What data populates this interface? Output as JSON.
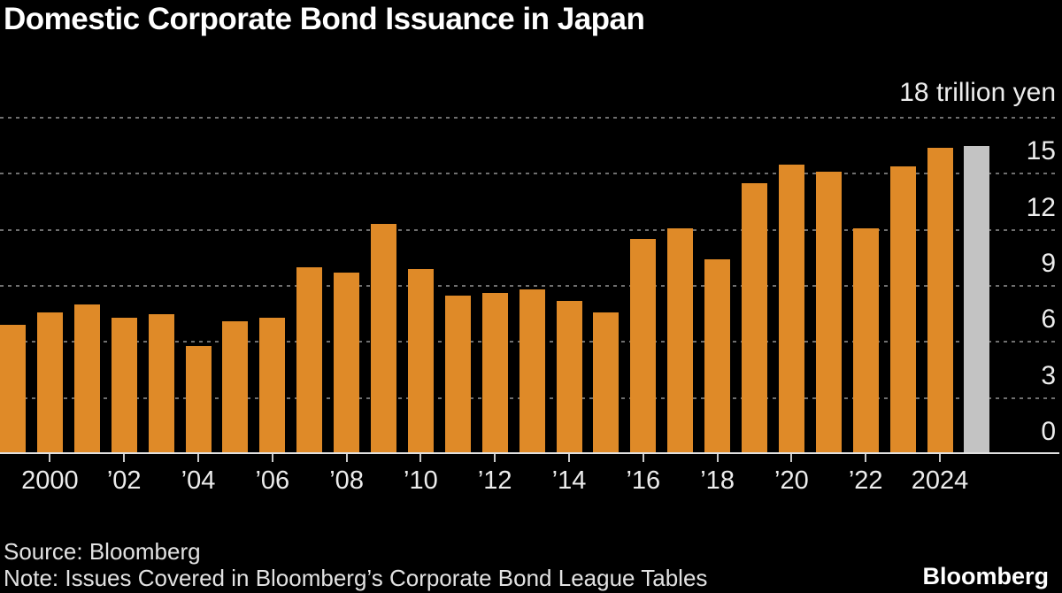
{
  "title": "Domestic Corporate Bond Issuance in Japan",
  "axis": {
    "top_label": "18 trillion yen",
    "y_tick_labels": [
      "0",
      "3",
      "6",
      "9",
      "12",
      "15"
    ],
    "x_tick_labels": [
      "2000",
      "’02",
      "’04",
      "’06",
      "’08",
      "’10",
      "’12",
      "’14",
      "’16",
      "’18",
      "’20",
      "’22",
      "2024"
    ],
    "x_tick_years": [
      2000,
      2002,
      2004,
      2006,
      2008,
      2010,
      2012,
      2014,
      2016,
      2018,
      2020,
      2022,
      2024
    ]
  },
  "footer": {
    "source": "Source: Bloomberg",
    "note": "Note: Issues Covered in Bloomberg’s Corporate Bond League Tables",
    "logo": "Bloomberg"
  },
  "colors": {
    "background": "#000000",
    "bar": "#df8a28",
    "gray_bar": "#c3c3c3",
    "gridline": "#6f6f6f",
    "baseline": "#e0e0e0",
    "text": "#ececec"
  },
  "chart_data": {
    "type": "bar",
    "title": "Domestic Corporate Bond Issuance in Japan",
    "unit": "trillion yen",
    "categories": [
      1999,
      2000,
      2001,
      2002,
      2003,
      2004,
      2005,
      2006,
      2007,
      2008,
      2009,
      2010,
      2011,
      2012,
      2013,
      2014,
      2015,
      2016,
      2017,
      2018,
      2019,
      2020,
      2021,
      2022,
      2023,
      2024,
      2025
    ],
    "values": [
      6.9,
      7.6,
      8.0,
      7.3,
      7.5,
      5.8,
      7.1,
      7.3,
      10.0,
      9.7,
      12.3,
      9.9,
      8.5,
      8.6,
      8.8,
      8.2,
      7.6,
      11.5,
      12.1,
      10.4,
      14.5,
      15.5,
      15.1,
      12.1,
      15.4,
      16.4,
      16.5
    ],
    "gray_bar_category": 2025,
    "y_ticks": [
      0,
      3,
      6,
      9,
      12,
      15,
      18
    ],
    "ylim": [
      0,
      18
    ],
    "grid": "dotted horizontal",
    "legend": "none",
    "y_axis_position": "right"
  }
}
